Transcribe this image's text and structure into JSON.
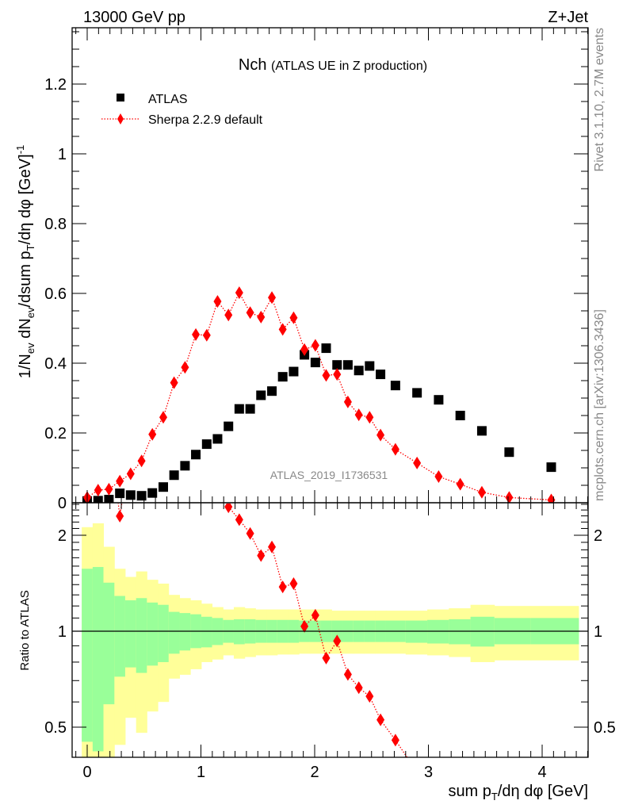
{
  "header": {
    "energy": "13000 GeV pp",
    "process": "Z+Jet"
  },
  "side_texts": {
    "rivet": "Rivet 3.1.10,  2.7M events",
    "mcplots": "mcplots.cern.ch [arXiv:1306.3436]"
  },
  "watermark": "ATLAS_2019_I1736531",
  "colors": {
    "data": "#000000",
    "mc": "#ff0000",
    "stat_band": "#99ff99",
    "total_band": "#ffff99"
  },
  "chart_data": [
    {
      "type": "scatter",
      "title_main": "Nch",
      "title_sub": "(ATLAS UE in Z production)",
      "ylabel_parts": {
        "a": "1/N",
        "a_sub": "ev",
        "b": " dN",
        "b_sub": "ev",
        "c": "/dsum p",
        "c_sub": "T",
        "d": "/dη dφ  [GeV]",
        "d_sup": "-1"
      },
      "xlabel_parts": {
        "a": "sum p",
        "a_sub": "T",
        "b": "/dη dφ [GeV]"
      },
      "xlim": [
        -0.13,
        4.4
      ],
      "ylim": [
        0,
        1.36
      ],
      "xticks": [
        "0",
        "1",
        "2",
        "3",
        "4"
      ],
      "yticks": [
        "0",
        "0.2",
        "0.4",
        "0.6",
        "0.8",
        "1",
        "1.2"
      ],
      "legend": [
        "ATLAS",
        "Sherpa 2.2.9 default"
      ],
      "legend_position": "top-left",
      "x": [
        0,
        0.096,
        0.191,
        0.287,
        0.382,
        0.478,
        0.573,
        0.669,
        0.764,
        0.86,
        0.955,
        1.051,
        1.146,
        1.242,
        1.337,
        1.433,
        1.528,
        1.624,
        1.719,
        1.815,
        1.91,
        2.006,
        2.101,
        2.197,
        2.292,
        2.388,
        2.483,
        2.579,
        2.71,
        2.9,
        3.09,
        3.28,
        3.47,
        3.71,
        4.08
      ],
      "series": [
        {
          "name": "ATLAS",
          "values": [
            0.005,
            0.006,
            0.009,
            0.027,
            0.022,
            0.02,
            0.028,
            0.045,
            0.079,
            0.106,
            0.138,
            0.168,
            0.183,
            0.219,
            0.269,
            0.269,
            0.308,
            0.32,
            0.361,
            0.376,
            0.424,
            0.402,
            0.443,
            0.395,
            0.395,
            0.379,
            0.392,
            0.368,
            0.336,
            0.315,
            0.295,
            0.25,
            0.206,
            0.145,
            0.102
          ]
        },
        {
          "name": "Sherpa 2.2.9 default",
          "values": [
            0.015,
            0.036,
            0.039,
            0.062,
            0.083,
            0.12,
            0.196,
            0.245,
            0.344,
            0.388,
            0.482,
            0.48,
            0.577,
            0.538,
            0.602,
            0.545,
            0.532,
            0.588,
            0.497,
            0.53,
            0.439,
            0.451,
            0.365,
            0.368,
            0.289,
            0.252,
            0.245,
            0.194,
            0.153,
            0.114,
            0.075,
            0.053,
            0.03,
            0.015,
            0.008
          ]
        }
      ]
    },
    {
      "type": "scatter",
      "ylabel": "Ratio to ATLAS",
      "yscale": "log",
      "ylim": [
        0.4,
        2.5
      ],
      "yticks": [
        "0.5",
        "1",
        "2"
      ],
      "xticks": [
        "0",
        "1",
        "2",
        "3",
        "4"
      ],
      "bin_edges": [
        -0.048,
        0.048,
        0.143,
        0.239,
        0.334,
        0.43,
        0.525,
        0.621,
        0.716,
        0.812,
        0.907,
        1.003,
        1.098,
        1.194,
        1.289,
        1.385,
        1.48,
        1.576,
        1.671,
        1.767,
        1.862,
        1.958,
        2.053,
        2.149,
        2.244,
        2.34,
        2.435,
        2.531,
        2.627,
        2.8,
        2.99,
        3.18,
        3.37,
        3.58,
        3.9,
        4.32
      ],
      "total_band_up": [
        2.12,
        2.18,
        1.84,
        1.57,
        1.48,
        1.54,
        1.45,
        1.41,
        1.3,
        1.27,
        1.25,
        1.22,
        1.19,
        1.17,
        1.19,
        1.18,
        1.17,
        1.17,
        1.17,
        1.17,
        1.17,
        1.17,
        1.17,
        1.16,
        1.16,
        1.16,
        1.16,
        1.16,
        1.16,
        1.16,
        1.17,
        1.18,
        1.21,
        1.2,
        1.2
      ],
      "stat_band_up": [
        1.57,
        1.59,
        1.42,
        1.29,
        1.25,
        1.27,
        1.23,
        1.21,
        1.15,
        1.14,
        1.13,
        1.11,
        1.1,
        1.085,
        1.09,
        1.09,
        1.085,
        1.085,
        1.085,
        1.085,
        1.08,
        1.08,
        1.08,
        1.08,
        1.08,
        1.08,
        1.08,
        1.08,
        1.08,
        1.08,
        1.085,
        1.09,
        1.11,
        1.1,
        1.1
      ],
      "stat_band_down": [
        0.45,
        0.42,
        0.59,
        0.72,
        0.77,
        0.74,
        0.78,
        0.8,
        0.85,
        0.87,
        0.885,
        0.89,
        0.905,
        0.92,
        0.91,
        0.915,
        0.92,
        0.92,
        0.92,
        0.92,
        0.925,
        0.925,
        0.925,
        0.925,
        0.925,
        0.925,
        0.925,
        0.925,
        0.925,
        0.92,
        0.915,
        0.91,
        0.895,
        0.91,
        0.91
      ],
      "total_band_down": [
        0.3,
        0.3,
        0.3,
        0.44,
        0.535,
        0.48,
        0.56,
        0.6,
        0.71,
        0.73,
        0.76,
        0.8,
        0.815,
        0.84,
        0.82,
        0.83,
        0.84,
        0.84,
        0.845,
        0.845,
        0.85,
        0.85,
        0.85,
        0.85,
        0.85,
        0.85,
        0.85,
        0.85,
        0.85,
        0.845,
        0.84,
        0.83,
        0.8,
        0.81,
        0.81
      ],
      "ratio_series": "Sherpa 2.2.9 default / ATLAS"
    }
  ]
}
